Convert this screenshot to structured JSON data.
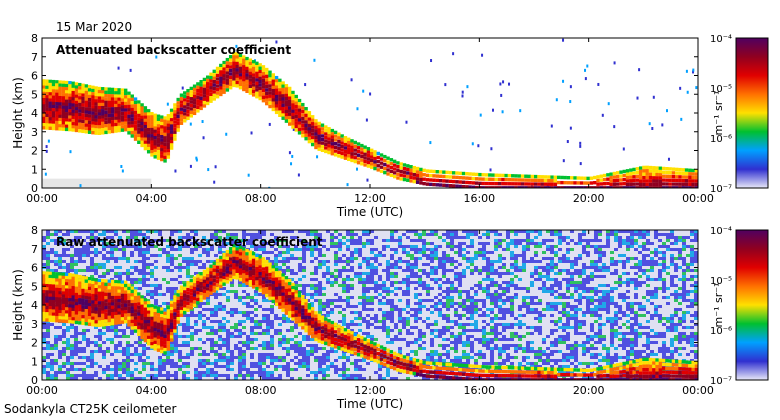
{
  "date": "15 Mar 2020",
  "footer": "Sodankyla CT25K ceilometer",
  "colorbar": {
    "unit_label": "m⁻¹ sr⁻¹",
    "ticks": [
      "10⁻⁴",
      "10⁻⁵",
      "10⁻⁶",
      "10⁻⁷"
    ],
    "tick_values": [
      -4,
      -5,
      -6,
      -7
    ],
    "range": [
      -7,
      -4
    ],
    "colors": [
      "#e8e8f8",
      "#3030d0",
      "#00a0ff",
      "#00c030",
      "#ffe000",
      "#ff7000",
      "#e00000",
      "#900020",
      "#500060"
    ]
  },
  "chart_data": [
    {
      "type": "heatmap",
      "title": "Attenuated backscatter coefficient",
      "xlabel": "Time (UTC)",
      "ylabel": "Height (km)",
      "xlim": [
        0,
        24
      ],
      "ylim": [
        0,
        8
      ],
      "x_ticks": [
        0,
        4,
        8,
        12,
        16,
        20,
        24
      ],
      "x_tick_labels": [
        "00:00",
        "04:00",
        "08:00",
        "12:00",
        "16:00",
        "20:00",
        "00:00"
      ],
      "y_ticks": [
        0,
        1,
        2,
        3,
        4,
        5,
        6,
        7,
        8
      ],
      "y_tick_labels": [
        "0",
        "1",
        "2",
        "3",
        "4",
        "5",
        "6",
        "7",
        "8"
      ],
      "color_scale": "log10 backscatter, 1e-7 to 1e-4 m-1 sr-1",
      "cloud_layer_profile": [
        {
          "time": 0.0,
          "top_km": 5.8,
          "bottom_km": 3.3
        },
        {
          "time": 1.0,
          "top_km": 5.7,
          "bottom_km": 3.2
        },
        {
          "time": 2.0,
          "top_km": 5.4,
          "bottom_km": 3.0
        },
        {
          "time": 3.0,
          "top_km": 5.3,
          "bottom_km": 3.2
        },
        {
          "time": 4.0,
          "top_km": 4.0,
          "bottom_km": 1.8
        },
        {
          "time": 4.5,
          "top_km": 3.8,
          "bottom_km": 1.5
        },
        {
          "time": 5.0,
          "top_km": 5.0,
          "bottom_km": 3.5
        },
        {
          "time": 6.0,
          "top_km": 6.0,
          "bottom_km": 4.6
        },
        {
          "time": 7.0,
          "top_km": 7.3,
          "bottom_km": 5.6
        },
        {
          "time": 8.0,
          "top_km": 6.6,
          "bottom_km": 4.8
        },
        {
          "time": 9.0,
          "top_km": 5.4,
          "bottom_km": 3.5
        },
        {
          "time": 10.0,
          "top_km": 3.6,
          "bottom_km": 2.2
        },
        {
          "time": 11.0,
          "top_km": 2.8,
          "bottom_km": 1.7
        },
        {
          "time": 12.0,
          "top_km": 2.1,
          "bottom_km": 1.2
        },
        {
          "time": 13.0,
          "top_km": 1.4,
          "bottom_km": 0.6
        },
        {
          "time": 14.0,
          "top_km": 1.0,
          "bottom_km": 0.3
        },
        {
          "time": 16.0,
          "top_km": 0.8,
          "bottom_km": 0.1
        },
        {
          "time": 18.0,
          "top_km": 0.7,
          "bottom_km": 0.1
        },
        {
          "time": 20.0,
          "top_km": 0.6,
          "bottom_km": 0.1
        },
        {
          "time": 22.0,
          "top_km": 1.2,
          "bottom_km": 0.1
        },
        {
          "time": 24.0,
          "top_km": 1.0,
          "bottom_km": 0.1
        }
      ]
    },
    {
      "type": "heatmap",
      "title": "Raw attenuated backscatter coefficient",
      "xlabel": "Time (UTC)",
      "ylabel": "Height (km)",
      "xlim": [
        0,
        24
      ],
      "ylim": [
        0,
        8
      ],
      "x_ticks": [
        0,
        4,
        8,
        12,
        16,
        20,
        24
      ],
      "x_tick_labels": [
        "00:00",
        "04:00",
        "08:00",
        "12:00",
        "16:00",
        "20:00",
        "00:00"
      ],
      "y_ticks": [
        0,
        1,
        2,
        3,
        4,
        5,
        6,
        7,
        8
      ],
      "y_tick_labels": [
        "0",
        "1",
        "2",
        "3",
        "4",
        "5",
        "6",
        "7",
        "8"
      ],
      "color_scale": "log10 backscatter, 1e-7 to 1e-4 m-1 sr-1",
      "noise_background": true,
      "cloud_layer_profile": [
        {
          "time": 0.0,
          "top_km": 5.8,
          "bottom_km": 3.3
        },
        {
          "time": 1.0,
          "top_km": 5.7,
          "bottom_km": 3.2
        },
        {
          "time": 2.0,
          "top_km": 5.4,
          "bottom_km": 3.0
        },
        {
          "time": 3.0,
          "top_km": 5.3,
          "bottom_km": 3.2
        },
        {
          "time": 4.0,
          "top_km": 4.0,
          "bottom_km": 1.8
        },
        {
          "time": 4.5,
          "top_km": 3.8,
          "bottom_km": 1.5
        },
        {
          "time": 5.0,
          "top_km": 5.0,
          "bottom_km": 3.5
        },
        {
          "time": 6.0,
          "top_km": 6.0,
          "bottom_km": 4.6
        },
        {
          "time": 7.0,
          "top_km": 7.3,
          "bottom_km": 5.6
        },
        {
          "time": 8.0,
          "top_km": 6.6,
          "bottom_km": 4.8
        },
        {
          "time": 9.0,
          "top_km": 5.4,
          "bottom_km": 3.5
        },
        {
          "time": 10.0,
          "top_km": 3.6,
          "bottom_km": 2.2
        },
        {
          "time": 11.0,
          "top_km": 2.8,
          "bottom_km": 1.7
        },
        {
          "time": 12.0,
          "top_km": 2.1,
          "bottom_km": 1.2
        },
        {
          "time": 13.0,
          "top_km": 1.4,
          "bottom_km": 0.6
        },
        {
          "time": 14.0,
          "top_km": 1.0,
          "bottom_km": 0.3
        },
        {
          "time": 16.0,
          "top_km": 0.8,
          "bottom_km": 0.1
        },
        {
          "time": 18.0,
          "top_km": 0.7,
          "bottom_km": 0.1
        },
        {
          "time": 20.0,
          "top_km": 0.6,
          "bottom_km": 0.1
        },
        {
          "time": 22.0,
          "top_km": 1.2,
          "bottom_km": 0.1
        },
        {
          "time": 24.0,
          "top_km": 1.0,
          "bottom_km": 0.1
        }
      ]
    }
  ]
}
